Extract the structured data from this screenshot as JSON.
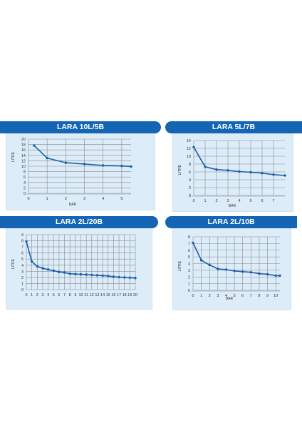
{
  "colors": {
    "banner": "#1466b5",
    "panel_bg": "#dcedf9",
    "line": "#1a5fa8",
    "grid": "#8a8a8a"
  },
  "chart_data": [
    {
      "type": "line",
      "title": "LARA 10L/5B",
      "xlabel": "BAR",
      "ylabel": "LITRE",
      "x_ticks": [
        "0",
        "1",
        "2",
        "3",
        "4",
        "5"
      ],
      "y_ticks": [
        "0",
        "2",
        "4",
        "6",
        "8",
        "10",
        "12",
        "14",
        "16",
        "18",
        "20"
      ],
      "xlim": [
        0,
        5.5
      ],
      "ylim": [
        0,
        20
      ],
      "grid": true,
      "x": [
        0.3,
        1,
        2,
        3,
        4,
        5,
        5.5
      ],
      "y": [
        17.6,
        13.0,
        11.3,
        10.8,
        10.3,
        10.1,
        9.9
      ]
    },
    {
      "type": "line",
      "title": "LARA 5L/7B",
      "xlabel": "BAR",
      "ylabel": "LITRE",
      "x_ticks": [
        "0",
        "1",
        "2",
        "3",
        "4",
        "5",
        "6",
        "7"
      ],
      "y_ticks": [
        "0",
        "2",
        "4",
        "6",
        "8",
        "10",
        "12",
        "14"
      ],
      "xlim": [
        0,
        8
      ],
      "ylim": [
        0,
        14
      ],
      "grid": true,
      "x": [
        0,
        1,
        2,
        3,
        4,
        5,
        6,
        7,
        8
      ],
      "y": [
        12.3,
        7.3,
        6.6,
        6.4,
        6.1,
        5.9,
        5.7,
        5.3,
        5.1
      ]
    },
    {
      "type": "line",
      "title": "LARA 2L/20B",
      "xlabel": "",
      "ylabel": "LITRE",
      "x_ticks": [
        "0",
        "1",
        "2",
        "3",
        "4",
        "5",
        "6",
        "7",
        "8",
        "9",
        "10",
        "11",
        "12",
        "13",
        "14",
        "15",
        "16",
        "17",
        "18",
        "19",
        "20"
      ],
      "y_ticks": [
        "0",
        "1",
        "2",
        "3",
        "4",
        "5",
        "6",
        "7",
        "8",
        "9"
      ],
      "xlim": [
        0,
        20
      ],
      "ylim": [
        0,
        9
      ],
      "grid": true,
      "x": [
        0,
        1,
        2,
        3,
        4,
        5,
        6,
        7,
        8,
        9,
        10,
        11,
        12,
        13,
        14,
        15,
        16,
        17,
        18,
        19,
        20
      ],
      "y": [
        7.9,
        4.6,
        3.8,
        3.5,
        3.3,
        3.1,
        2.9,
        2.8,
        2.6,
        2.55,
        2.5,
        2.45,
        2.4,
        2.35,
        2.3,
        2.25,
        2.1,
        2.05,
        2.0,
        1.95,
        1.9
      ]
    },
    {
      "type": "line",
      "title": "LARA 2L/10B",
      "xlabel": "BAR",
      "ylabel": "LITRE",
      "x_ticks": [
        "0",
        "1",
        "2",
        "3",
        "4",
        "5",
        "6",
        "7",
        "8",
        "9",
        "10"
      ],
      "y_ticks": [
        "0",
        "1",
        "2",
        "3",
        "4",
        "5",
        "6",
        "7",
        "8"
      ],
      "xlim": [
        0,
        10.5
      ],
      "ylim": [
        0,
        8
      ],
      "grid": true,
      "x": [
        0,
        1,
        2,
        3,
        4,
        5,
        6,
        7,
        8,
        9,
        10,
        10.5
      ],
      "y": [
        7.1,
        4.5,
        3.8,
        3.2,
        3.1,
        2.9,
        2.8,
        2.7,
        2.5,
        2.4,
        2.2,
        2.2
      ]
    }
  ]
}
